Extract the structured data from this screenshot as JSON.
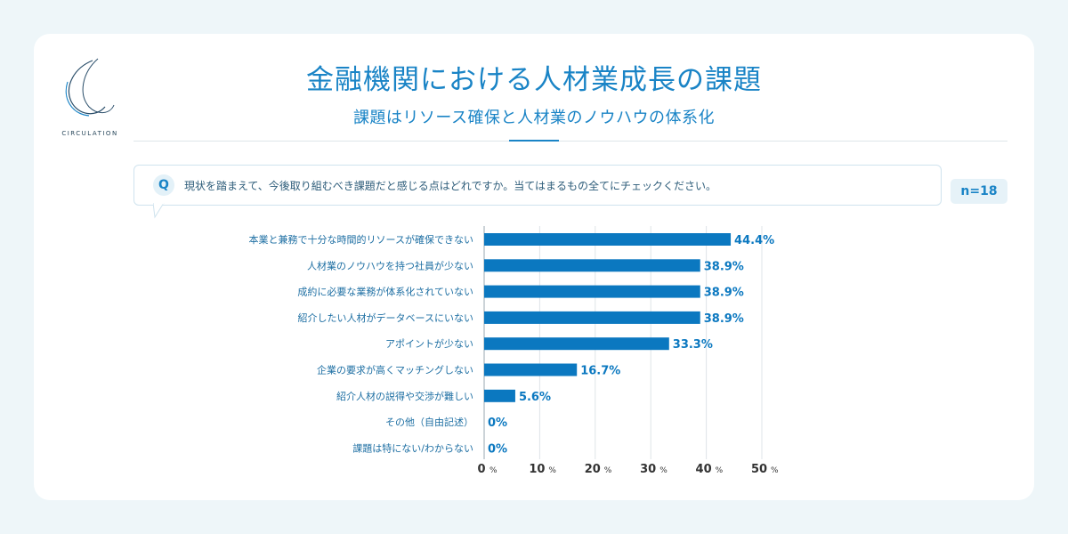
{
  "header": {
    "title": "金融機関における人材業成長の課題",
    "subtitle": "課題はリソース確保と人材業のノウハウの体系化"
  },
  "logo": {
    "text": "CIRCULATION"
  },
  "question": {
    "marker": "Q",
    "text": "現状を踏まえて、今後取り組むべき課題だと感じる点はどれですか。当てはまるもの全てにチェックください。"
  },
  "sample": {
    "label": "n=18"
  },
  "colors": {
    "accent": "#1a84c6",
    "bar": "#0b78c0",
    "label": "#1e6fa3",
    "grid": "#dfe4e8"
  },
  "chart_data": {
    "type": "bar",
    "orientation": "horizontal",
    "categories": [
      "本業と兼務で十分な時間的リソースが確保できない",
      "人材業のノウハウを持つ社員が少ない",
      "成約に必要な業務が体系化されていない",
      "紹介したい人材がデータベースにいない",
      "アポイントが少ない",
      "企業の要求が高くマッチングしない",
      "紹介人材の説得や交渉が難しい",
      "その他（自由記述）",
      "課題は特にない/わからない"
    ],
    "values": [
      44.4,
      38.9,
      38.9,
      38.9,
      33.3,
      16.7,
      5.6,
      0,
      0
    ],
    "value_labels": [
      "44.4%",
      "38.9%",
      "38.9%",
      "38.9%",
      "33.3%",
      "16.7%",
      "5.6%",
      "0%",
      "0%"
    ],
    "xlim": [
      0,
      50
    ],
    "ticks": [
      0,
      10,
      20,
      30,
      40,
      50
    ],
    "tick_labels": [
      "0",
      "10",
      "20",
      "30",
      "40",
      "50"
    ],
    "tick_unit": "%",
    "grid": true
  }
}
